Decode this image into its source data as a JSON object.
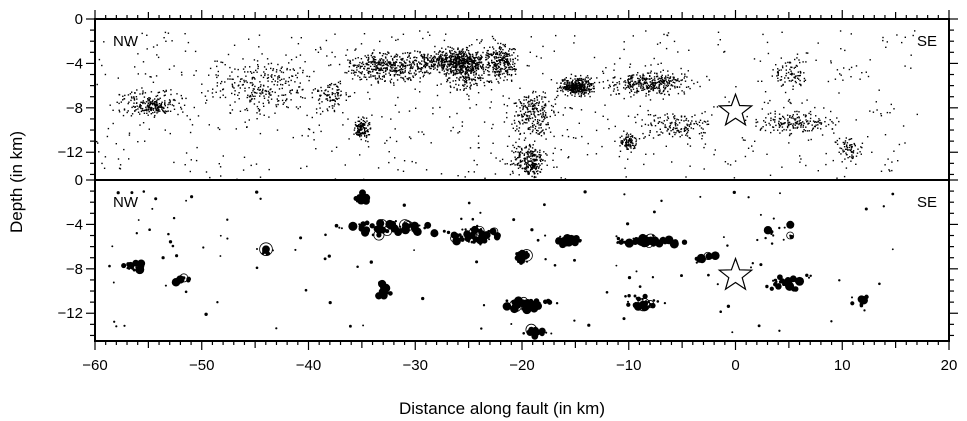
{
  "chart_data": {
    "type": "scatter",
    "xlabel": "Distance along fault (in km)",
    "ylabel": "Depth (in km)",
    "xlim": [
      -60,
      20
    ],
    "x_ticks": [
      -60,
      -50,
      -40,
      -30,
      -20,
      -10,
      0,
      10,
      20
    ],
    "panels": [
      {
        "name": "top",
        "ylim": [
          -14.5,
          0
        ],
        "y_ticks": [
          0,
          -4,
          -8,
          -12
        ],
        "left_label": "NW",
        "right_label": "SE",
        "mainshock": {
          "x": 0,
          "y": -8.3
        },
        "clusters": [
          {
            "x": [
              -59,
              -51
            ],
            "y": [
              -9,
              -6
            ],
            "n": 160
          },
          {
            "x": [
              -56,
              -53
            ],
            "y": [
              -8.5,
              -7.2
            ],
            "n": 90
          },
          {
            "x": [
              -51,
              -38
            ],
            "y": [
              -9,
              -3
            ],
            "n": 260
          },
          {
            "x": [
              -40,
              -36
            ],
            "y": [
              -8.5,
              -5
            ],
            "n": 90
          },
          {
            "x": [
              -38,
              -27
            ],
            "y": [
              -6,
              -2.5
            ],
            "n": 420
          },
          {
            "x": [
              -36,
              -34
            ],
            "y": [
              -11,
              -8.5
            ],
            "n": 130
          },
          {
            "x": [
              -31,
              -22
            ],
            "y": [
              -5,
              -2.5
            ],
            "n": 420
          },
          {
            "x": [
              -28,
              -23
            ],
            "y": [
              -7,
              -2
            ],
            "n": 330
          },
          {
            "x": [
              -24,
              -20
            ],
            "y": [
              -6,
              -1.5
            ],
            "n": 260
          },
          {
            "x": [
              -17,
              -13
            ],
            "y": [
              -7,
              -5
            ],
            "n": 360
          },
          {
            "x": [
              -22,
              -16
            ],
            "y": [
              -11,
              -6
            ],
            "n": 230
          },
          {
            "x": [
              -22,
              -17
            ],
            "y": [
              -14.5,
              -10.5
            ],
            "n": 170
          },
          {
            "x": [
              -20,
              -18
            ],
            "y": [
              -14.5,
              -12
            ],
            "n": 80
          },
          {
            "x": [
              -13,
              -3
            ],
            "y": [
              -7,
              -4.5
            ],
            "n": 340
          },
          {
            "x": [
              -11,
              -9
            ],
            "y": [
              -12,
              -10
            ],
            "n": 90
          },
          {
            "x": [
              -9,
              -2
            ],
            "y": [
              -11,
              -8
            ],
            "n": 140
          },
          {
            "x": [
              1,
              10
            ],
            "y": [
              -10.5,
              -8
            ],
            "n": 170
          },
          {
            "x": [
              3,
              7
            ],
            "y": [
              -6.5,
              -3
            ],
            "n": 80
          },
          {
            "x": [
              9,
              12
            ],
            "y": [
              -13.5,
              -10
            ],
            "n": 70
          }
        ],
        "background": {
          "x": [
            -60,
            17
          ],
          "y": [
            -14.5,
            -1
          ],
          "n": 650
        }
      },
      {
        "name": "bottom",
        "ylim": [
          -14.5,
          0
        ],
        "y_ticks": [
          0,
          -4,
          -8,
          -12
        ],
        "left_label": "NW",
        "right_label": "SE",
        "mainshock": {
          "x": 0,
          "y": -8.6
        },
        "clusters": [
          {
            "x": [
              -58,
              -55
            ],
            "y": [
              -8.3,
              -7.3
            ],
            "n": 16
          },
          {
            "x": [
              -53,
              -51
            ],
            "y": [
              -9.3,
              -8.6
            ],
            "n": 10
          },
          {
            "x": [
              -45,
              -43
            ],
            "y": [
              -7,
              -5.5
            ],
            "n": 6
          },
          {
            "x": [
              -38,
              -27
            ],
            "y": [
              -5,
              -3.5
            ],
            "n": 70
          },
          {
            "x": [
              -36,
              -34
            ],
            "y": [
              -2.5,
              -1
            ],
            "n": 14
          },
          {
            "x": [
              -34,
              -32
            ],
            "y": [
              -11,
              -9
            ],
            "n": 14
          },
          {
            "x": [
              -28,
              -21
            ],
            "y": [
              -6,
              -4
            ],
            "n": 70
          },
          {
            "x": [
              -21,
              -19
            ],
            "y": [
              -8,
              -6
            ],
            "n": 18
          },
          {
            "x": [
              -22,
              -17
            ],
            "y": [
              -12,
              -10.5
            ],
            "n": 50
          },
          {
            "x": [
              -20,
              -17
            ],
            "y": [
              -14.2,
              -13.2
            ],
            "n": 16
          },
          {
            "x": [
              -17,
              -14
            ],
            "y": [
              -6,
              -5
            ],
            "n": 50
          },
          {
            "x": [
              -12,
              -4
            ],
            "y": [
              -6,
              -5
            ],
            "n": 60
          },
          {
            "x": [
              -11,
              -6
            ],
            "y": [
              -12,
              -10
            ],
            "n": 24
          },
          {
            "x": [
              -5,
              -1
            ],
            "y": [
              -7.5,
              -6.5
            ],
            "n": 12
          },
          {
            "x": [
              2,
              7
            ],
            "y": [
              -10,
              -8.5
            ],
            "n": 30
          },
          {
            "x": [
              2,
              6
            ],
            "y": [
              -6,
              -3
            ],
            "n": 16
          },
          {
            "x": [
              10,
              13
            ],
            "y": [
              -12,
              -10
            ],
            "n": 8
          }
        ],
        "background": {
          "x": [
            -60,
            15
          ],
          "y": [
            -14,
            -1
          ],
          "n": 120
        }
      }
    ]
  }
}
